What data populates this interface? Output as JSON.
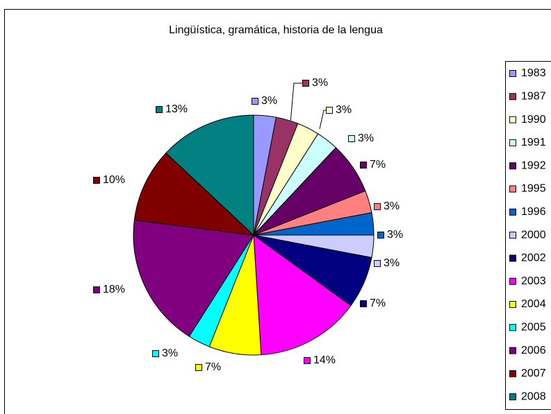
{
  "chart_data": {
    "type": "pie",
    "title": "Lingüística, gramática, historia de la lengua",
    "categories": [
      "1983",
      "1987",
      "1990",
      "1991",
      "1992",
      "1995",
      "1996",
      "2000",
      "2002",
      "2003",
      "2004",
      "2005",
      "2006",
      "2007",
      "2008"
    ],
    "values": [
      3,
      3,
      3,
      3,
      7,
      3,
      3,
      3,
      7,
      14,
      7,
      3,
      18,
      10,
      13
    ],
    "value_labels": [
      "3%",
      "3%",
      "3%",
      "3%",
      "7%",
      "3%",
      "3%",
      "3%",
      "7%",
      "14%",
      "7%",
      "3%",
      "18%",
      "10%",
      "13%"
    ],
    "colors": [
      "#9999FF",
      "#993366",
      "#FFFFCC",
      "#CCFFFF",
      "#660066",
      "#FF8080",
      "#0066CC",
      "#CCCCFF",
      "#000080",
      "#FF00FF",
      "#FFFF00",
      "#00FFFF",
      "#800080",
      "#800000",
      "#008080"
    ],
    "legend": "right"
  }
}
